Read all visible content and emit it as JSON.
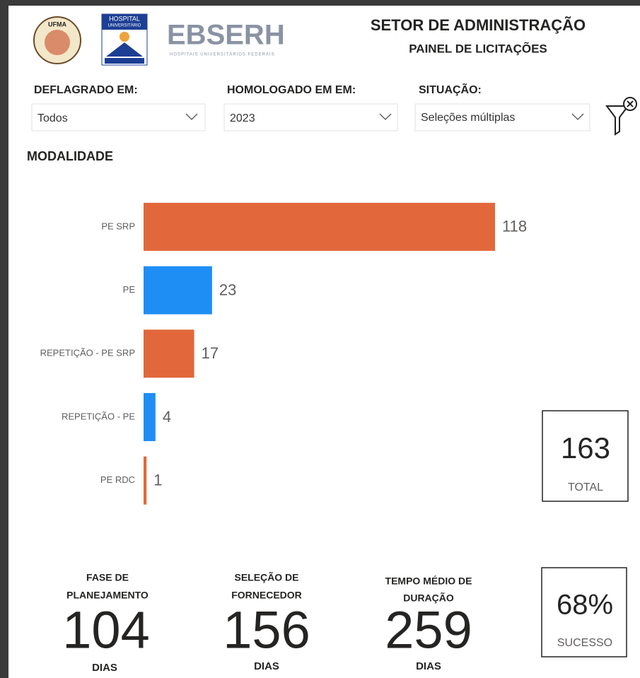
{
  "header": {
    "logos": {
      "ufma": "UFMA",
      "hospital": [
        "HOSPITAL",
        "UNIVERSITÁRIO"
      ],
      "ebserh": "EBSERH",
      "ebserh_sub": "HOSPITAIS UNIVERSITÁRIOS FEDERAIS"
    },
    "title": "SETOR DE ADMINISTRAÇÃO",
    "subtitle": "PAINEL DE LICITAÇÕES"
  },
  "filters": [
    {
      "label": "DEFLAGRADO EM:",
      "value": "Todos"
    },
    {
      "label": "HOMOLOGADO EM EM:",
      "value": "2023"
    },
    {
      "label": "SITUAÇÃO:",
      "value": "Seleções múltiplas"
    }
  ],
  "chart_data": {
    "type": "bar",
    "orientation": "horizontal",
    "title": "MODALIDADE",
    "categories": [
      "PE SRP",
      "PE",
      "REPETIÇÃO - PE SRP",
      "REPETIÇÃO - PE",
      "PE RDC"
    ],
    "values": [
      118,
      23,
      17,
      4,
      1
    ],
    "colors": [
      "#e2683c",
      "#1e8ef5",
      "#e2683c",
      "#1e8ef5",
      "#e2683c"
    ],
    "xlim": [
      0,
      118
    ]
  },
  "total_card": {
    "value": 163,
    "label": "TOTAL"
  },
  "kpis": [
    {
      "label": [
        "FASE DE",
        "PLANEJAMENTO"
      ],
      "value": 104,
      "unit": "DIAS"
    },
    {
      "label": [
        "SELEÇÃO DE",
        "FORNECEDOR"
      ],
      "value": 156,
      "unit": "DIAS"
    },
    {
      "label": [
        "TEMPO MÉDIO DE",
        "DURAÇÃO"
      ],
      "value": 259,
      "unit": "DIAS"
    }
  ],
  "success_card": {
    "value": "68%",
    "label": "SUCESSO"
  }
}
